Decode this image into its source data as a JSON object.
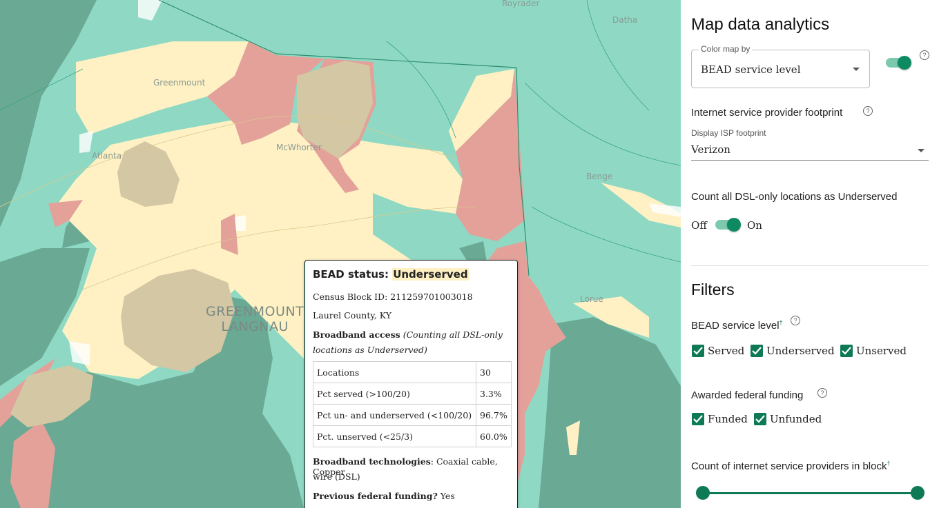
{
  "map": {
    "places": {
      "royrader": "Royrader",
      "datha": "Datha",
      "greenmount": "Greenmount",
      "atlanta": "Atlanta",
      "mcwhorter": "McWhorter",
      "benge": "Benge",
      "lorue": "Lorue",
      "region_line1": "GREENMOUNT",
      "region_line2": "LANGNAU"
    },
    "colors": {
      "served": "#8fd9c4",
      "served_dark": "#6aa994",
      "underserved": "#fff1c4",
      "unserved": "#e3a19a",
      "funded": "#d3c7a4"
    }
  },
  "tooltip": {
    "title_prefix": "BEAD status:",
    "status": "Underserved",
    "census_block": "Census Block ID: 211259701003018",
    "county": "Laurel County, KY",
    "broadband_access_label": "Broadband access",
    "broadband_access_note1": "(Counting all DSL-only",
    "broadband_access_note2": "locations as Underserved)",
    "table": [
      {
        "label": "Locations",
        "value": "30"
      },
      {
        "label": "Pct served (>100/20)",
        "value": "3.3%"
      },
      {
        "label": "Pct un- and underserved (<100/20)",
        "value": "96.7%"
      },
      {
        "label": "Pct. unserved (<25/3)",
        "value": "60.0%"
      }
    ],
    "tech_label": "Broadband technologies",
    "tech_value1": ": Coaxial cable, Copper",
    "tech_value2": "wire (DSL)",
    "funding_label": "Previous federal funding?",
    "funding_value": " Yes"
  },
  "panel": {
    "title": "Map data analytics",
    "color_map": {
      "legend": "Color map by",
      "value": "BEAD service level"
    },
    "isp_footprint": {
      "heading": "Internet service provider footprint",
      "label": "Display ISP footprint",
      "value": "Verizon"
    },
    "dsl": {
      "heading": "Count all DSL-only locations as Underserved",
      "off": "Off",
      "on": "On"
    },
    "filters_title": "Filters",
    "bead_level": {
      "heading": "BEAD service level",
      "dagger": "†",
      "options": [
        "Served",
        "Underserved",
        "Unserved"
      ]
    },
    "federal_funding": {
      "heading": "Awarded federal funding",
      "options": [
        "Funded",
        "Unfunded"
      ]
    },
    "isp_count": {
      "heading": "Count of internet service providers in block",
      "dagger": "†"
    },
    "help_glyph": "?"
  }
}
